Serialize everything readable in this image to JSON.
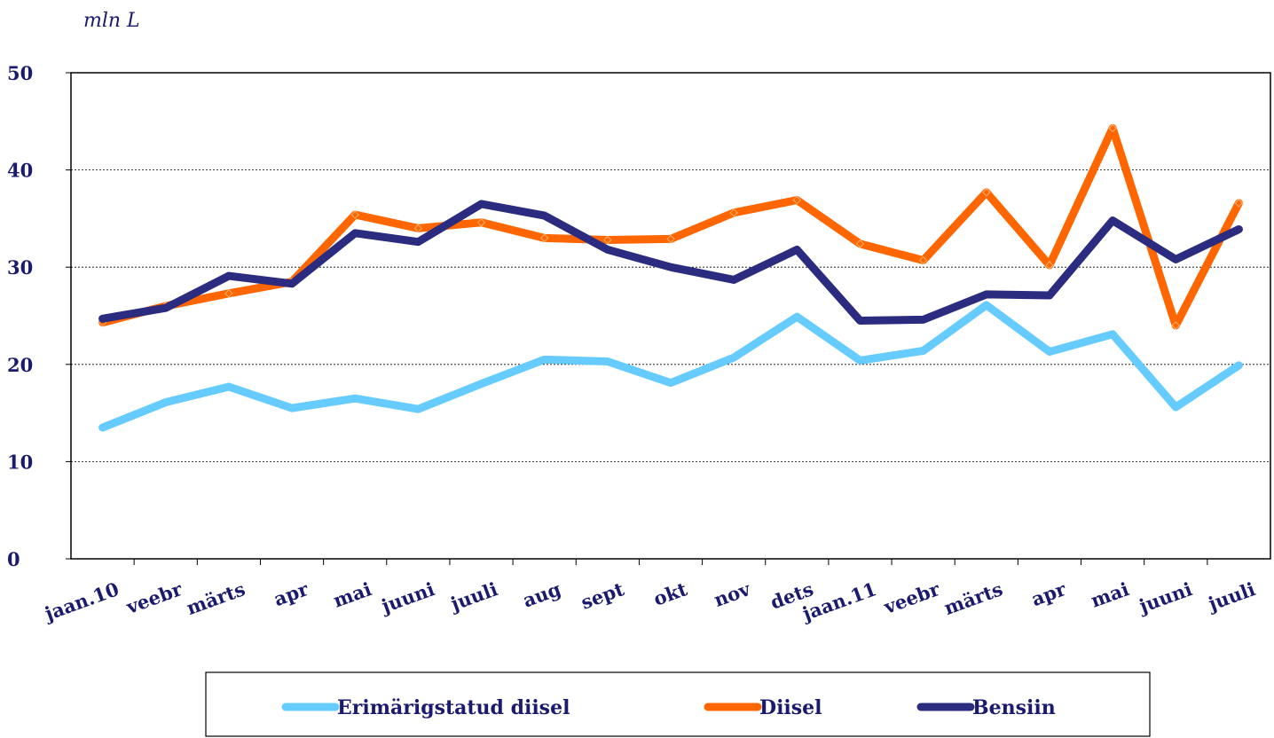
{
  "chart_data": {
    "type": "line",
    "y_label": "mln L",
    "categories": [
      "jaan.10",
      "veebr",
      "märts",
      "apr",
      "mai",
      "juuni",
      "juuli",
      "aug",
      "sept",
      "okt",
      "nov",
      "dets",
      "jaan.11",
      "veebr",
      "märts",
      "apr",
      "mai",
      "juuni",
      "juuli"
    ],
    "series": [
      {
        "name": "Erimärigstatud diisel",
        "color": "#66ccff",
        "values": [
          13.5,
          16.1,
          17.7,
          15.5,
          16.5,
          15.4,
          18.0,
          20.5,
          20.3,
          18.1,
          20.7,
          24.9,
          20.4,
          21.4,
          26.1,
          21.3,
          23.1,
          15.6,
          19.9
        ]
      },
      {
        "name": "Diisel",
        "color": "#ff6600",
        "marker": "diamond",
        "values": [
          24.3,
          26.0,
          27.3,
          28.5,
          35.4,
          34.0,
          34.6,
          33.0,
          32.8,
          32.9,
          35.6,
          36.9,
          32.4,
          30.7,
          37.7,
          30.2,
          44.3,
          24.0,
          36.6
        ]
      },
      {
        "name": "Bensiin",
        "color": "#2b2b80",
        "values": [
          24.7,
          25.8,
          29.1,
          28.3,
          33.5,
          32.6,
          36.5,
          35.3,
          31.8,
          30.0,
          28.7,
          31.8,
          24.5,
          24.6,
          27.2,
          27.1,
          34.8,
          30.8,
          33.9
        ]
      }
    ],
    "ylim": [
      0,
      50
    ],
    "yticks": [
      0,
      10,
      20,
      30,
      40,
      50
    ],
    "grid": true,
    "legend": "bottom"
  }
}
